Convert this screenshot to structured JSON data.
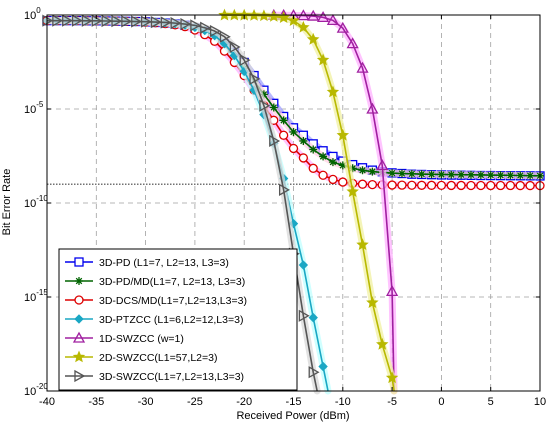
{
  "chart_data": {
    "type": "line",
    "title": "",
    "xlabel": "Received Power (dBm)",
    "ylabel": "Bit Error Rate",
    "xlim": [
      -40,
      10
    ],
    "ylim": [
      1e-20,
      1
    ],
    "yscale": "log",
    "grid": true,
    "legend_position": "bottom-left",
    "x_ticks": [
      {
        "v": -40,
        "label": "-40"
      },
      {
        "v": -35,
        "label": "-35"
      },
      {
        "v": -30,
        "label": "-30"
      },
      {
        "v": -25,
        "label": "-25"
      },
      {
        "v": -20,
        "label": "-20"
      },
      {
        "v": -15,
        "label": "-15"
      },
      {
        "v": -10,
        "label": "-10"
      },
      {
        "v": -5,
        "label": "-5"
      },
      {
        "v": 0,
        "label": "0"
      },
      {
        "v": 5,
        "label": "5"
      },
      {
        "v": 10,
        "label": "10"
      }
    ],
    "y_ticks": [
      {
        "exp": 0,
        "base": "10",
        "sup": "0"
      },
      {
        "exp": -5,
        "base": "10",
        "sup": "-5"
      },
      {
        "exp": -10,
        "base": "10",
        "sup": "-10"
      },
      {
        "exp": -15,
        "base": "10",
        "sup": "-15"
      },
      {
        "exp": -20,
        "base": "10",
        "sup": "-20"
      }
    ],
    "threshold_y": 1e-09,
    "series": [
      {
        "name": "3D-PD (L1=7, L2=13, L3=3)",
        "color": "#0000ee",
        "glow": "#a0a0ff",
        "marker": "square",
        "x": [
          -40,
          -39,
          -38,
          -37,
          -36,
          -35,
          -34,
          -33,
          -32,
          -31,
          -30,
          -29,
          -28,
          -27,
          -26,
          -25,
          -24,
          -23,
          -22,
          -21,
          -20,
          -19,
          -18,
          -17,
          -16,
          -15,
          -14,
          -13,
          -12,
          -11,
          -10,
          -9,
          -8,
          -7,
          -6,
          -5,
          -4,
          -3,
          -2,
          -1,
          0,
          1,
          2,
          3,
          4,
          5,
          6,
          7,
          8,
          9,
          10
        ],
        "y": [
          0.5,
          0.5,
          0.5,
          0.5,
          0.49,
          0.49,
          0.48,
          0.47,
          0.46,
          0.45,
          0.43,
          0.4,
          0.37,
          0.33,
          0.28,
          0.2,
          0.13,
          0.07,
          0.03,
          0.01,
          0.003,
          0.0006,
          0.0001,
          2e-05,
          4e-06,
          1e-06,
          4e-07,
          1.4e-07,
          6e-08,
          3e-08,
          1.7e-08,
          1.1e-08,
          7.5e-09,
          5.6e-09,
          4.6e-09,
          4e-09,
          3.7e-09,
          3.4e-09,
          3.3e-09,
          3.2e-09,
          3.1e-09,
          3.05e-09,
          3e-09,
          2.95e-09,
          2.9e-09,
          2.88e-09,
          2.85e-09,
          2.82e-09,
          2.8e-09,
          2.78e-09,
          2.75e-09
        ]
      },
      {
        "name": "3D-PD/MD(L1=7, L2=13, L3=3)",
        "color": "#006400",
        "glow": "#ffd0e0",
        "marker": "star",
        "x": [
          -40,
          -39,
          -38,
          -37,
          -36,
          -35,
          -34,
          -33,
          -32,
          -31,
          -30,
          -29,
          -28,
          -27,
          -26,
          -25,
          -24,
          -23,
          -22,
          -21,
          -20,
          -19,
          -18,
          -17,
          -16,
          -15,
          -14,
          -13,
          -12,
          -11,
          -10,
          -9,
          -8,
          -7,
          -6,
          -5,
          -4,
          -3,
          -2,
          -1,
          0,
          1,
          2,
          3,
          4,
          5,
          6,
          7,
          8,
          9,
          10
        ],
        "y": [
          0.5,
          0.5,
          0.5,
          0.5,
          0.49,
          0.49,
          0.48,
          0.47,
          0.46,
          0.45,
          0.43,
          0.4,
          0.36,
          0.32,
          0.27,
          0.19,
          0.12,
          0.06,
          0.02,
          0.006,
          0.0015,
          0.0003,
          6e-05,
          1.2e-05,
          2.5e-06,
          6e-07,
          2e-07,
          7e-08,
          3e-08,
          1.5e-08,
          1e-08,
          7e-09,
          5.5e-09,
          4.7e-09,
          4.2e-09,
          3.9e-09,
          3.7e-09,
          3.55e-09,
          3.45e-09,
          3.35e-09,
          3.3e-09,
          3.25e-09,
          3.2e-09,
          3.15e-09,
          3.1e-09,
          3.05e-09,
          3e-09,
          2.95e-09,
          2.9e-09,
          2.85e-09,
          2.8e-09
        ]
      },
      {
        "name": "3D-DCS/MD(L1=7,L2=13,L3=3)",
        "color": "#dd0000",
        "glow": "#ffb0ff",
        "marker": "circle",
        "x": [
          -40,
          -39,
          -38,
          -37,
          -36,
          -35,
          -34,
          -33,
          -32,
          -31,
          -30,
          -29,
          -28,
          -27,
          -26,
          -25,
          -24,
          -23,
          -22,
          -21,
          -20,
          -19,
          -18,
          -17,
          -16,
          -15,
          -14,
          -13,
          -12,
          -11,
          -10,
          -9,
          -8,
          -7,
          -6,
          -5,
          -4,
          -3,
          -2,
          -1,
          0,
          1,
          2,
          3,
          4,
          5,
          6,
          7,
          8,
          9,
          10
        ],
        "y": [
          0.5,
          0.5,
          0.5,
          0.5,
          0.49,
          0.49,
          0.48,
          0.47,
          0.46,
          0.45,
          0.42,
          0.39,
          0.35,
          0.3,
          0.24,
          0.16,
          0.09,
          0.04,
          0.012,
          0.003,
          0.0006,
          0.0001,
          1.5e-05,
          2.5e-06,
          4e-07,
          8e-08,
          2.5e-08,
          7e-09,
          3e-09,
          1.8e-09,
          1.3e-09,
          1.1e-09,
          1e-09,
          9.5e-10,
          9.2e-10,
          9e-10,
          8.9e-10,
          8.8e-10,
          8.75e-10,
          8.7e-10,
          8.65e-10,
          8.6e-10,
          8.6e-10,
          8.55e-10,
          8.55e-10,
          8.5e-10,
          8.5e-10,
          8.5e-10,
          8.45e-10,
          8.45e-10,
          8.4e-10
        ]
      },
      {
        "name": "3D-PTZCC (L1=6,L2=12,L3=3)",
        "color": "#1aa7c4",
        "glow": "#c0ffff",
        "marker": "diamond",
        "x": [
          -40,
          -39,
          -38,
          -37,
          -36,
          -35,
          -34,
          -33,
          -32,
          -31,
          -30,
          -29,
          -28,
          -27,
          -26,
          -25,
          -24,
          -23,
          -22,
          -21,
          -20,
          -19,
          -18,
          -17,
          -16,
          -15,
          -14,
          -13,
          -12,
          -11.5
        ],
        "y": [
          0.5,
          0.5,
          0.5,
          0.5,
          0.49,
          0.49,
          0.48,
          0.47,
          0.46,
          0.45,
          0.43,
          0.41,
          0.38,
          0.34,
          0.29,
          0.22,
          0.15,
          0.08,
          0.03,
          0.007,
          0.001,
          0.0001,
          5e-06,
          1.5e-07,
          2e-09,
          8e-12,
          5e-14,
          8e-17,
          2e-19,
          1e-20
        ]
      },
      {
        "name": "1D-SWZCC (w=1)",
        "color": "#a020a0",
        "glow": "#ffb0ff",
        "marker": "triangle-up",
        "x": [
          -17,
          -16,
          -15,
          -14,
          -13,
          -12,
          -11,
          -10,
          -9,
          -8,
          -7,
          -6,
          -5,
          -4.8
        ],
        "y": [
          0.98,
          0.97,
          0.96,
          0.93,
          0.88,
          0.75,
          0.52,
          0.2,
          0.03,
          0.0015,
          1e-05,
          1e-08,
          2e-15,
          1e-20
        ]
      },
      {
        "name": "2D-SWZCC(L1=57,L2=3)",
        "color": "#b8b800",
        "glow": "#f0f0a0",
        "marker": "star6",
        "x": [
          -22,
          -21,
          -20,
          -19,
          -18,
          -17,
          -16,
          -15,
          -14,
          -13,
          -12,
          -11,
          -10,
          -9,
          -8,
          -7,
          -6,
          -5,
          -4.8
        ],
        "y": [
          0.98,
          0.97,
          0.96,
          0.94,
          0.9,
          0.84,
          0.72,
          0.5,
          0.22,
          0.05,
          0.004,
          8e-05,
          4e-07,
          4e-10,
          6e-13,
          5e-16,
          3e-18,
          5e-20,
          1e-20
        ]
      },
      {
        "name": "3D-SWZCC(L1=7,L2=13,L3=3)",
        "color": "#555555",
        "glow": "#d8d8d8",
        "marker": "triangle-right",
        "x": [
          -40,
          -39,
          -38,
          -37,
          -36,
          -35,
          -34,
          -33,
          -32,
          -31,
          -30,
          -29,
          -28,
          -27,
          -26,
          -25,
          -24,
          -23,
          -22,
          -21,
          -20,
          -19,
          -18,
          -17,
          -16,
          -15,
          -14,
          -13,
          -12.6
        ],
        "y": [
          0.5,
          0.5,
          0.5,
          0.5,
          0.49,
          0.49,
          0.48,
          0.47,
          0.46,
          0.45,
          0.44,
          0.42,
          0.4,
          0.37,
          0.33,
          0.28,
          0.21,
          0.14,
          0.07,
          0.02,
          0.004,
          0.0004,
          1.5e-05,
          2e-07,
          5e-10,
          2e-13,
          1e-16,
          1e-19,
          1e-20
        ]
      }
    ]
  }
}
